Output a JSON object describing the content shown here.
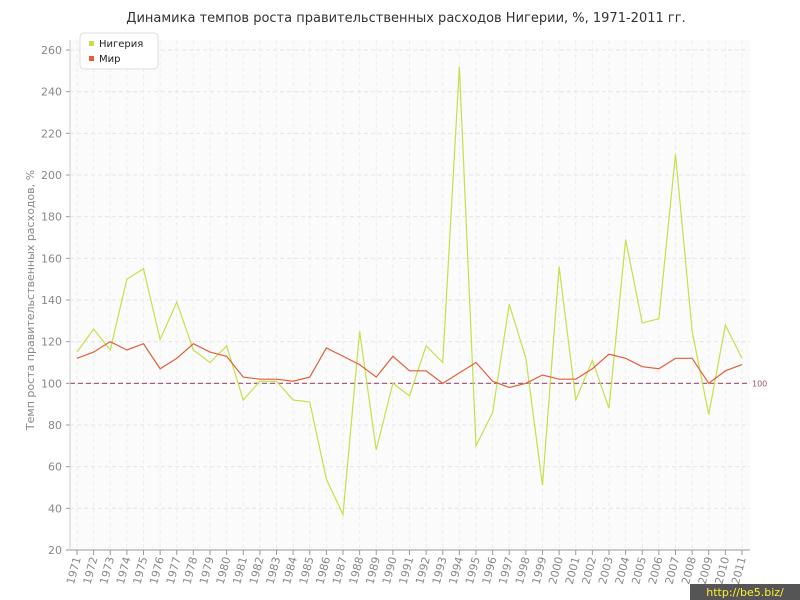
{
  "chart_data": {
    "type": "line",
    "title": "Динамика темпов роста правительственных расходов Нигерии, %, 1971-2011 гг.",
    "y_label": "Темп роста правительственных расходов, %",
    "watermark": "http://be5.biz/",
    "categories": [
      "1971",
      "1972",
      "1973",
      "1974",
      "1975",
      "1976",
      "1977",
      "1978",
      "1979",
      "1980",
      "1981",
      "1982",
      "1983",
      "1984",
      "1985",
      "1986",
      "1987",
      "1988",
      "1989",
      "1990",
      "1991",
      "1992",
      "1993",
      "1994",
      "1995",
      "1996",
      "1997",
      "1998",
      "1999",
      "2000",
      "2001",
      "2002",
      "2003",
      "2004",
      "2005",
      "2006",
      "2007",
      "2008",
      "2009",
      "2010",
      "2011"
    ],
    "series": [
      {
        "name": "Нигерия",
        "color": "#c5e04a",
        "values": [
          115,
          126,
          116,
          150,
          155,
          121,
          139,
          116,
          110,
          118,
          92,
          101,
          101,
          92,
          91,
          54,
          37,
          125,
          68,
          100,
          94,
          118,
          110,
          252,
          70,
          86,
          138,
          112,
          51,
          156,
          92,
          111,
          88,
          169,
          129,
          131,
          210,
          125,
          85,
          128,
          112
        ]
      },
      {
        "name": "Мир",
        "color": "#e0603a",
        "values": [
          112,
          115,
          120,
          116,
          119,
          107,
          112,
          119,
          115,
          113,
          103,
          102,
          102,
          101,
          103,
          117,
          113,
          109,
          103,
          113,
          106,
          106,
          100,
          105,
          110,
          101,
          98,
          100,
          104,
          102,
          102,
          107,
          114,
          112,
          108,
          107,
          112,
          112,
          100,
          106,
          109
        ]
      }
    ],
    "reference_line": 100,
    "reference_color": "#a05070",
    "ylim": [
      20,
      260
    ],
    "yticks": [
      20,
      40,
      60,
      80,
      100,
      120,
      140,
      160,
      180,
      200,
      220,
      240,
      260
    ],
    "grid": true,
    "legend": "top-left"
  }
}
